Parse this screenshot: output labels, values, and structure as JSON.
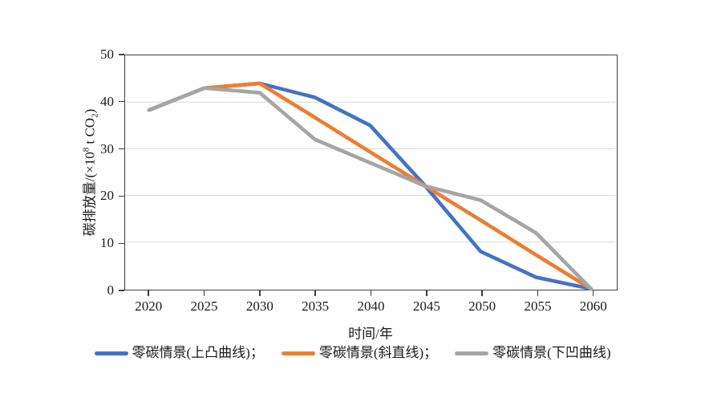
{
  "page": {
    "background_color": "#ffffff"
  },
  "chart_data": {
    "type": "line",
    "title": "",
    "xlabel": "时间/年",
    "ylabel": "碳排放量/(×10⁸ t CO₂)",
    "ylabel_parts": {
      "pre": "碳排放量/(×10",
      "sup": "8",
      "mid": " t CO",
      "sub": "2",
      "suf": ")"
    },
    "x": [
      2020,
      2025,
      2030,
      2035,
      2040,
      2045,
      2050,
      2055,
      2060
    ],
    "xticks": [
      "2020",
      "2025",
      "2030",
      "2035",
      "2040",
      "2045",
      "2050",
      "2055",
      "2060"
    ],
    "ylim": [
      0,
      50
    ],
    "yticks": [
      0,
      10,
      20,
      30,
      40,
      50
    ],
    "grid": "horizontal",
    "gridline_color": "#d9d9d9",
    "axis_color": "#3f3f3f",
    "legend_position": "bottom",
    "series": [
      {
        "name": "零碳情景(上凸曲线)",
        "legend_label": "零碳情景(上凸曲线)；",
        "color": "#4472C4",
        "values": [
          38.3,
          43,
          44,
          41,
          35,
          22,
          8,
          2.5,
          0
        ]
      },
      {
        "name": "零碳情景(斜直线)",
        "legend_label": "零碳情景(斜直线)；",
        "color": "#ED7D31",
        "values": [
          38.3,
          43,
          44,
          36.7,
          29.3,
          22,
          14.7,
          7.3,
          0
        ]
      },
      {
        "name": "零碳情景(下凹曲线)",
        "legend_label": "零碳情景(下凹曲线)",
        "color": "#A5A5A5",
        "values": [
          38.3,
          43,
          42,
          32,
          27,
          22,
          19,
          12,
          0
        ]
      }
    ]
  }
}
